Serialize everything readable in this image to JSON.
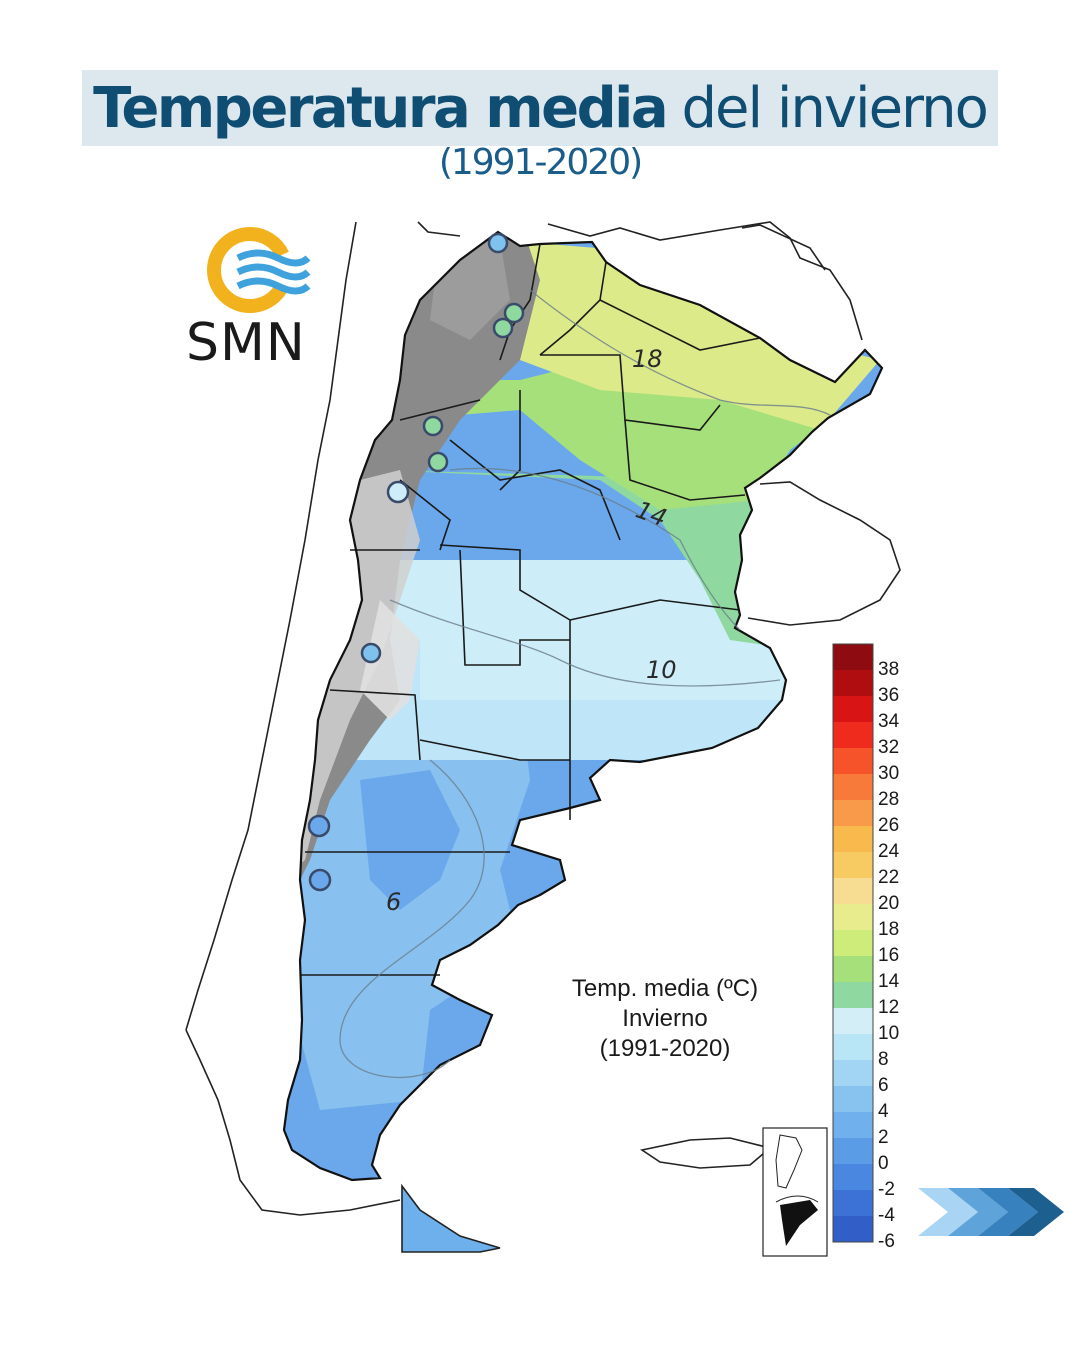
{
  "header": {
    "title_bold": "Temperatura media",
    "title_light": "del invierno",
    "subtitle": "(1991-2020)"
  },
  "logo": {
    "text": "SMN",
    "icon": "smn-logo-icon",
    "ring_color": "#f2b21e",
    "wave_color": "#3fa2dc"
  },
  "legend": {
    "line1": "Temp. media (ºC)",
    "line2": "Invierno",
    "line3": "(1991-2020)"
  },
  "scale": [
    {
      "label": "38",
      "color": "#8e0b12"
    },
    {
      "label": "36",
      "color": "#b00d10"
    },
    {
      "label": "34",
      "color": "#d81414"
    },
    {
      "label": "32",
      "color": "#ef2b1e"
    },
    {
      "label": "30",
      "color": "#f6532a"
    },
    {
      "label": "28",
      "color": "#f77a3a"
    },
    {
      "label": "26",
      "color": "#f89a4a"
    },
    {
      "label": "24",
      "color": "#f8b94d"
    },
    {
      "label": "22",
      "color": "#f7cb62"
    },
    {
      "label": "20",
      "color": "#f6dd91"
    },
    {
      "label": "18",
      "color": "#e8ec8c"
    },
    {
      "label": "16",
      "color": "#cdec7a"
    },
    {
      "label": "14",
      "color": "#a6e07a"
    },
    {
      "label": "12",
      "color": "#8fd9a0"
    },
    {
      "label": "10",
      "color": "#d4eef8"
    },
    {
      "label": "8",
      "color": "#b9e6f7"
    },
    {
      "label": "6",
      "color": "#a1d5f3"
    },
    {
      "label": "4",
      "color": "#88c3ef"
    },
    {
      "label": "2",
      "color": "#70b0ec"
    },
    {
      "label": "0",
      "color": "#5b9ce6"
    },
    {
      "label": "-2",
      "color": "#4a87e0"
    },
    {
      "label": "-4",
      "color": "#3c72d6"
    },
    {
      "label": "-6",
      "color": "#325ec8"
    }
  ],
  "contour_labels": [
    {
      "label": "18",
      "name": "contour-label-18"
    },
    {
      "label": "14",
      "name": "contour-label-14"
    },
    {
      "label": "10",
      "name": "contour-label-10"
    },
    {
      "label": "6",
      "name": "contour-label-6"
    }
  ],
  "colors": {
    "title": "#0f4d72",
    "title_band": "#dce8ee",
    "mountains": "#8a8a8a",
    "arrows": "#1d5f8f"
  },
  "icons": [
    "smn-logo-icon",
    "next-arrows-icon",
    "locator-inset-icon"
  ]
}
